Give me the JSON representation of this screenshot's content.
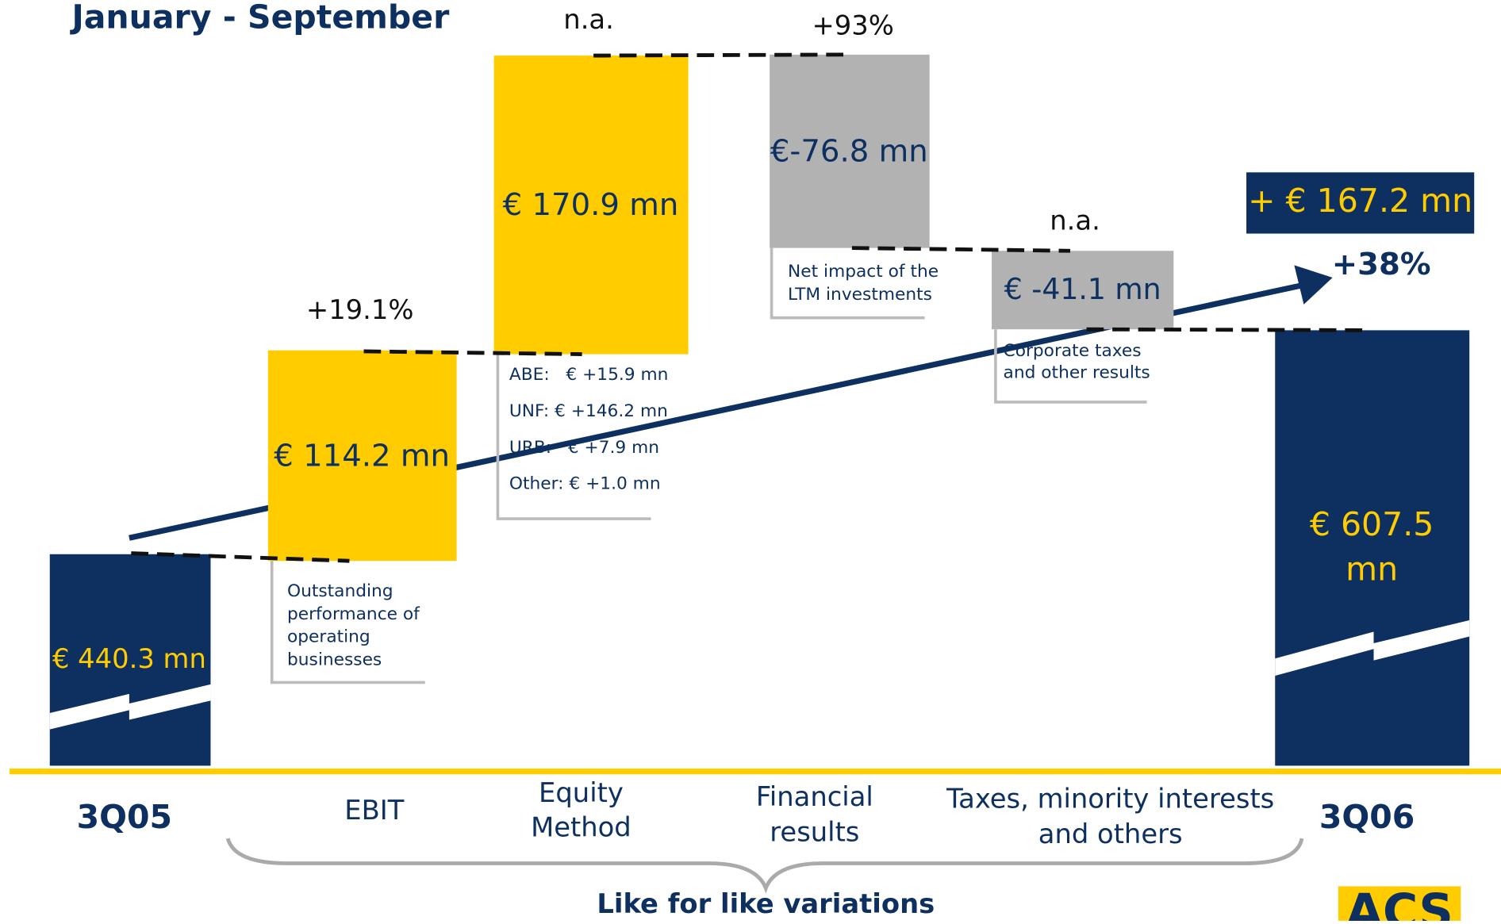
{
  "title": "January - September",
  "bars": [
    {
      "category": "3Q05",
      "value_label": "€ 440.3 mn"
    },
    {
      "category": "EBIT",
      "value_label": "€ 114.2 mn",
      "change": "+19.1%",
      "note": [
        "Outstanding",
        "performance of",
        "operating",
        "businesses"
      ]
    },
    {
      "category": [
        "Equity",
        "Method"
      ],
      "value_label": "€ 170.9 mn",
      "change": "n.a.",
      "note": [
        "ABE:   € +15.9 mn",
        "UNF: € +146.2 mn",
        "URB:   € +7.9 mn",
        "Other: € +1.0 mn"
      ]
    },
    {
      "category": [
        "Financial",
        "results"
      ],
      "value_label": "€-76.8 mn",
      "change": "+93%",
      "note": [
        "Net impact of the",
        "LTM investments"
      ]
    },
    {
      "category": [
        "Taxes, minority interests",
        "and others"
      ],
      "value_label": "€ -41.1 mn",
      "change": "n.a.",
      "note": [
        "Corporate taxes",
        "and other results"
      ]
    },
    {
      "category": "3Q06",
      "value_label": [
        "€ 607.5",
        "mn"
      ]
    }
  ],
  "total_change": "+ € 167.2 mn",
  "total_change_pct": "+38%",
  "brace_label": "Like for like variations",
  "logo": "ACS"
}
